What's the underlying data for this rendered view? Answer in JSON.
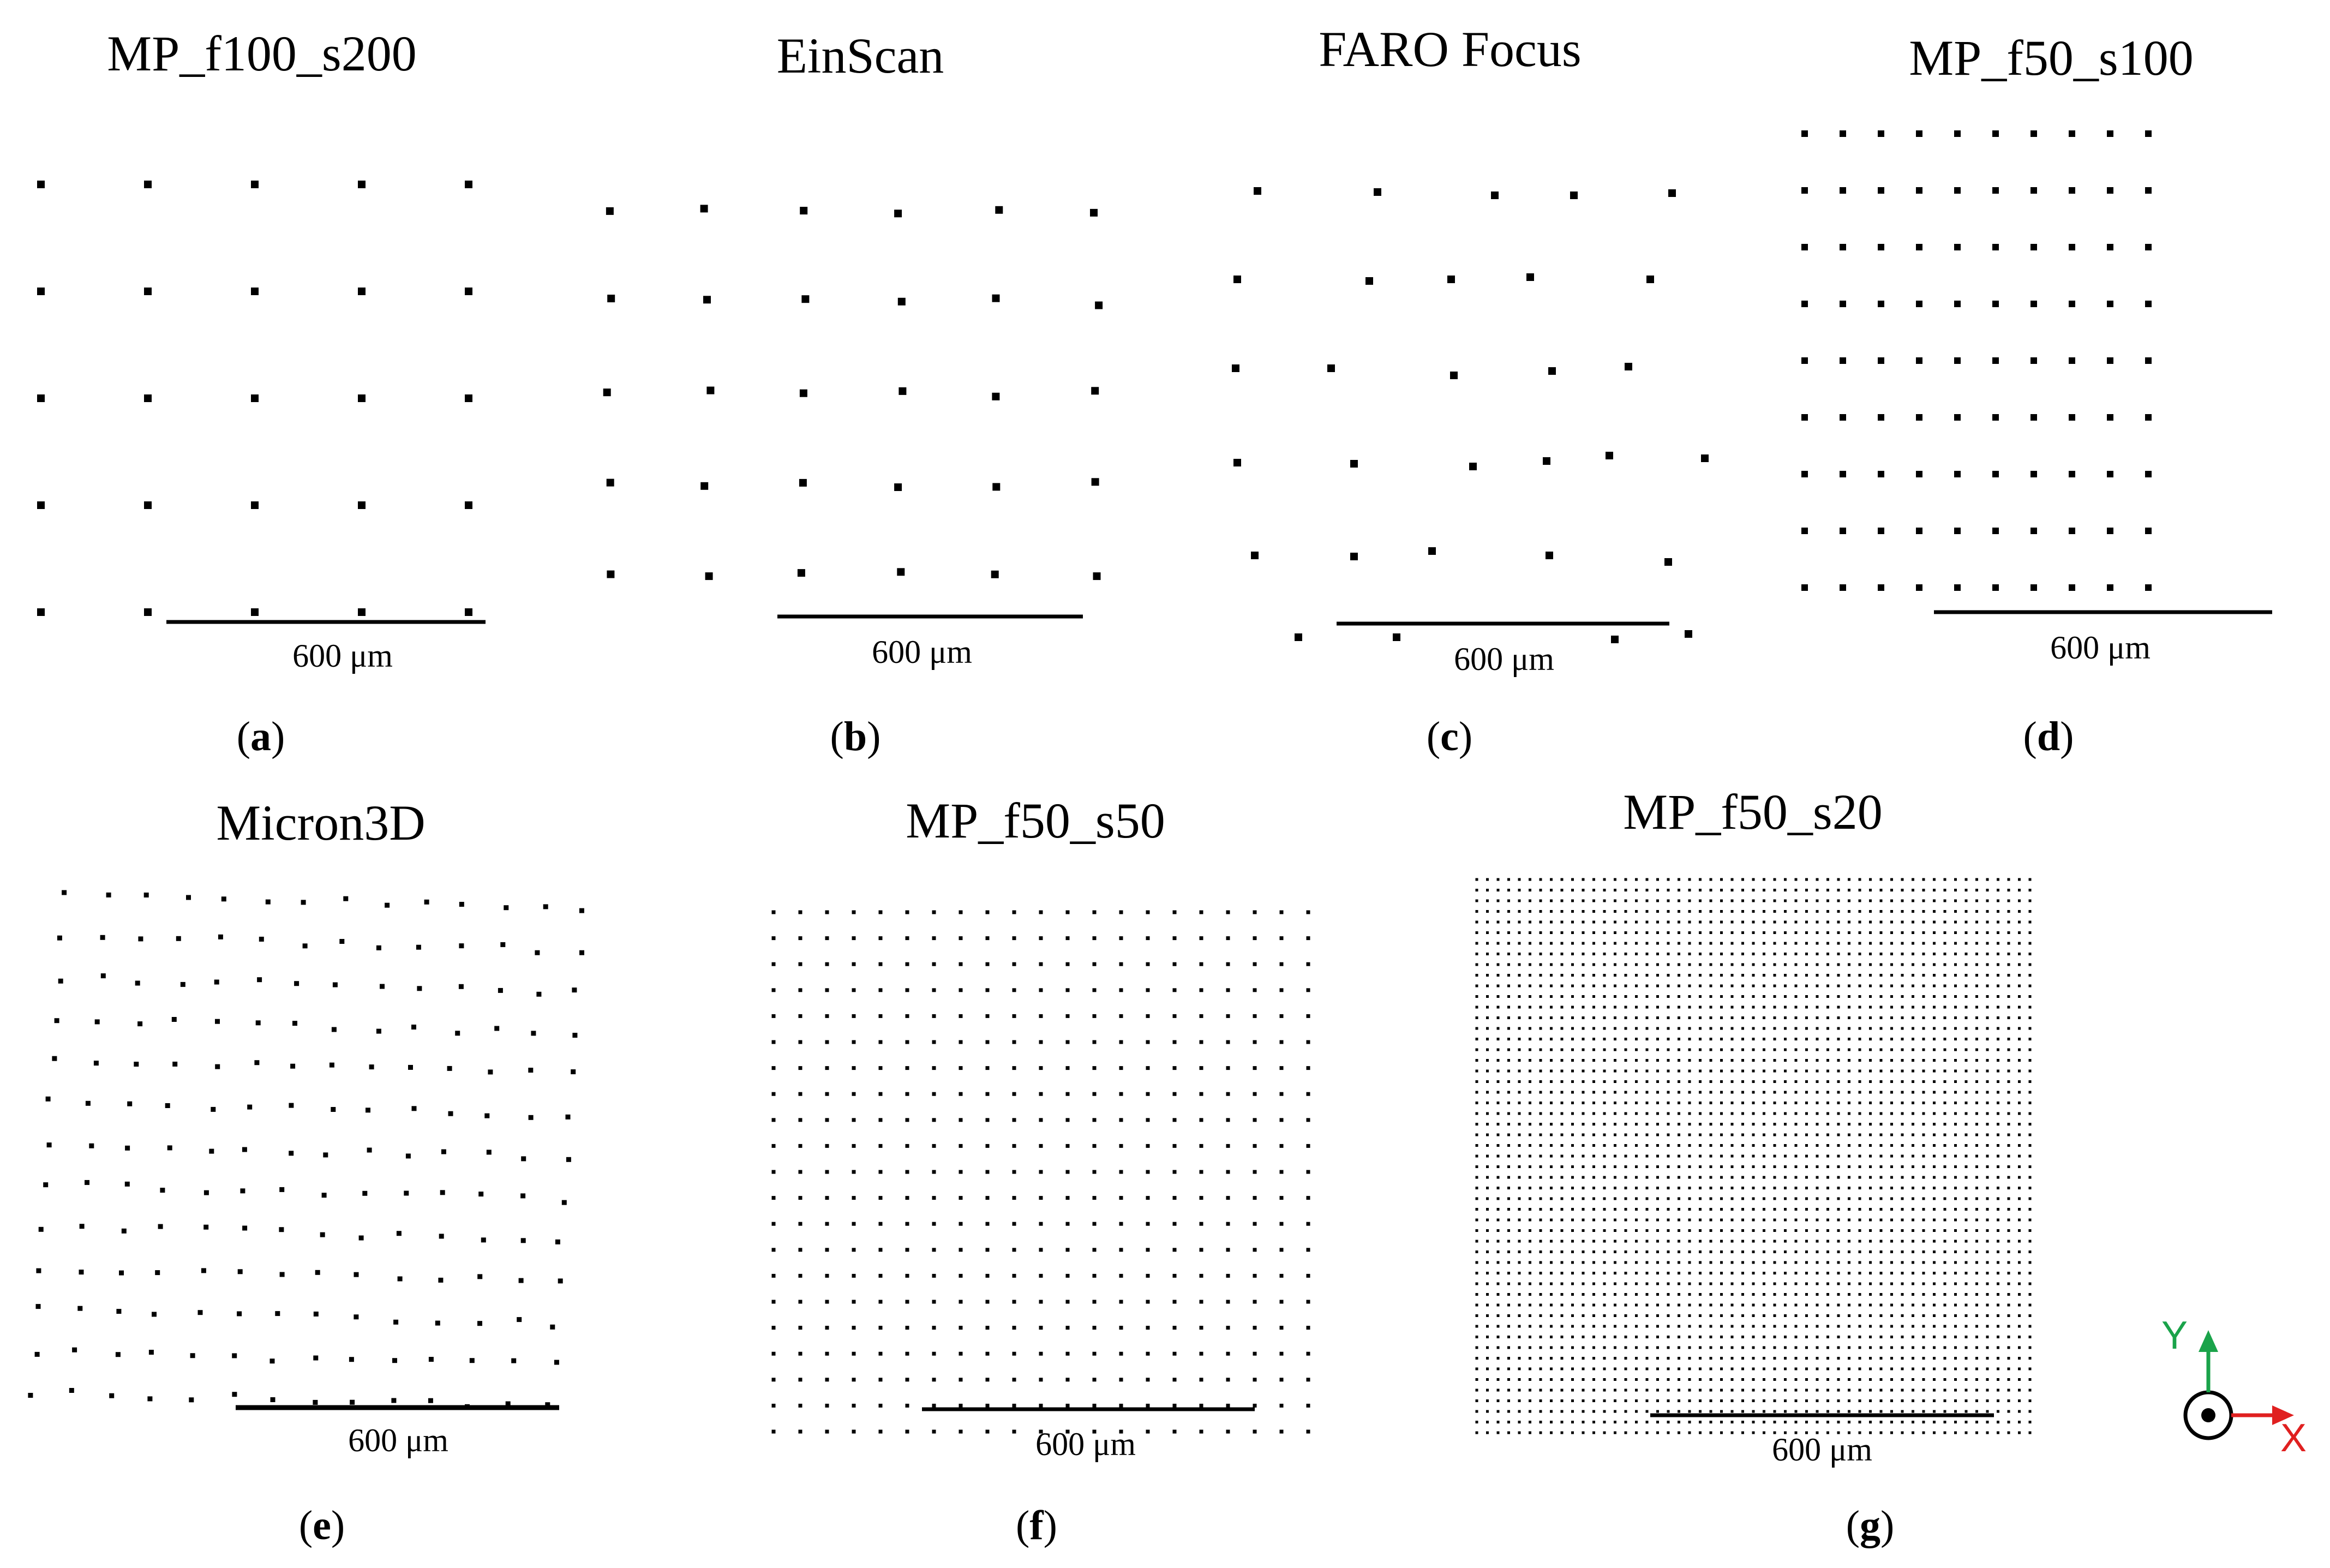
{
  "scale_label": "600 μm",
  "panels": [
    {
      "id": "a",
      "title": "MP_f100_s200",
      "caption_letter": "a",
      "pattern": "regular grid"
    },
    {
      "id": "b",
      "title": "EinScan",
      "caption_letter": "b",
      "pattern": "regular grid"
    },
    {
      "id": "c",
      "title": "FARO Focus",
      "caption_letter": "c",
      "pattern": "irregular"
    },
    {
      "id": "d",
      "title": "MP_f50_s100",
      "caption_letter": "d",
      "pattern": "regular grid"
    },
    {
      "id": "e",
      "title": "Micron3D",
      "caption_letter": "e",
      "pattern": "distorted grid"
    },
    {
      "id": "f",
      "title": "MP_f50_s50",
      "caption_letter": "f",
      "pattern": "regular grid"
    },
    {
      "id": "g",
      "title": "MP_f50_s20",
      "caption_letter": "g",
      "pattern": "regular grid"
    }
  ],
  "axes": {
    "y_label": "Y",
    "x_label": "X",
    "y_color": "#1aa34a",
    "x_color": "#e02020",
    "z_symbol": "out-of-plane dot"
  },
  "colors": {
    "dots": "#000000",
    "background": "#ffffff"
  }
}
